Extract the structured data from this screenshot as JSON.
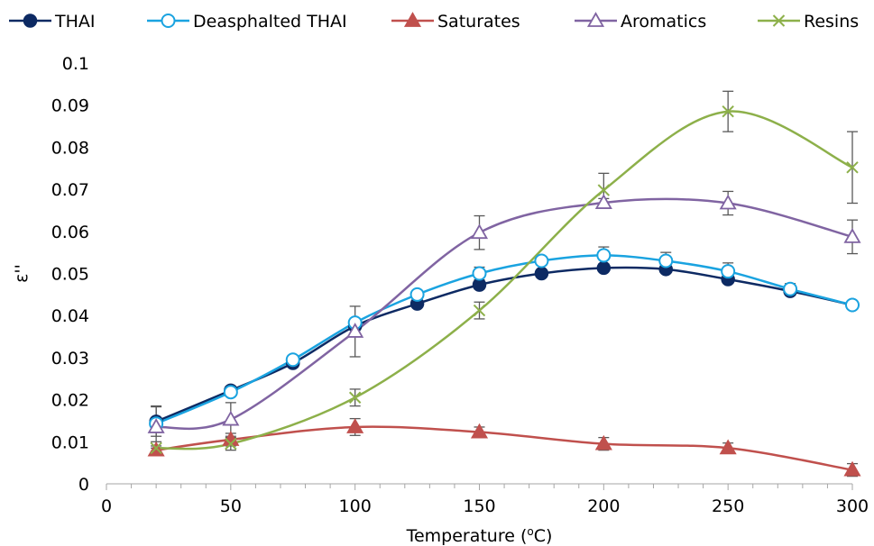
{
  "chart_data": {
    "type": "line",
    "xlabel_main": "Temperature (",
    "xlabel_sup": "o",
    "xlabel_tail": "C)",
    "ylabel": "ε''",
    "xlim": [
      0,
      300
    ],
    "ylim": [
      0,
      0.1
    ],
    "xticks": [
      0,
      50,
      100,
      150,
      200,
      250,
      300
    ],
    "yticks": [
      0,
      0.01,
      0.02,
      0.03,
      0.04,
      0.05,
      0.06,
      0.07,
      0.08,
      0.09,
      0.1
    ],
    "ytick_labels": [
      "0",
      "0.01",
      "0.02",
      "0.03",
      "0.04",
      "0.05",
      "0.06",
      "0.07",
      "0.08",
      "0.09",
      "0.1"
    ],
    "grid": false,
    "legend_position": "top",
    "series": [
      {
        "name": "THAI",
        "color": "#0d2a63",
        "marker": "circle-filled",
        "x": [
          20,
          50,
          75,
          100,
          125,
          150,
          175,
          200,
          225,
          250,
          275,
          300
        ],
        "y": [
          0.0148,
          0.0222,
          0.0287,
          0.0375,
          0.0428,
          0.0473,
          0.05,
          0.0513,
          0.051,
          0.0486,
          0.0458,
          0.0425
        ],
        "err": [
          0.0035,
          0.001,
          0.001,
          0.001,
          0.0008,
          0.001,
          0.0008,
          0.0008,
          0.0008,
          0.0008,
          0.001,
          0.0005
        ]
      },
      {
        "name": "Deasphalted THAI",
        "color": "#1aa3e0",
        "marker": "circle-open",
        "x": [
          20,
          50,
          75,
          100,
          125,
          150,
          175,
          200,
          225,
          250,
          275,
          300
        ],
        "y": [
          0.0143,
          0.0218,
          0.0295,
          0.0383,
          0.045,
          0.05,
          0.053,
          0.0543,
          0.053,
          0.0505,
          0.0463,
          0.0425
        ],
        "err": [
          0.001,
          0.001,
          0.001,
          0.001,
          0.001,
          0.0015,
          0.001,
          0.002,
          0.002,
          0.002,
          0.0013,
          0.0005
        ]
      },
      {
        "name": "Saturates",
        "color": "#c0504d",
        "marker": "triangle-filled",
        "x": [
          20,
          50,
          100,
          150,
          200,
          250,
          300
        ],
        "y": [
          0.008,
          0.0105,
          0.0135,
          0.0123,
          0.0095,
          0.0085,
          0.0033
        ],
        "err": [
          0.001,
          0.0015,
          0.002,
          0.0012,
          0.0015,
          0.0012,
          0.0015
        ]
      },
      {
        "name": "Aromatics",
        "color": "#8064a2",
        "marker": "triangle-open",
        "x": [
          20,
          50,
          100,
          150,
          200,
          250,
          300
        ],
        "y": [
          0.0135,
          0.0153,
          0.0362,
          0.0597,
          0.0668,
          0.0667,
          0.0587
        ],
        "err": [
          0.005,
          0.004,
          0.006,
          0.004,
          0.001,
          0.0028,
          0.004
        ]
      },
      {
        "name": "Resins",
        "color": "#8db04a",
        "marker": "x",
        "x": [
          20,
          50,
          100,
          150,
          200,
          250,
          300
        ],
        "y": [
          0.0085,
          0.0095,
          0.0205,
          0.0412,
          0.0698,
          0.0885,
          0.0752
        ],
        "err": [
          0.0015,
          0.0015,
          0.002,
          0.002,
          0.004,
          0.0048,
          0.0085
        ]
      }
    ]
  }
}
